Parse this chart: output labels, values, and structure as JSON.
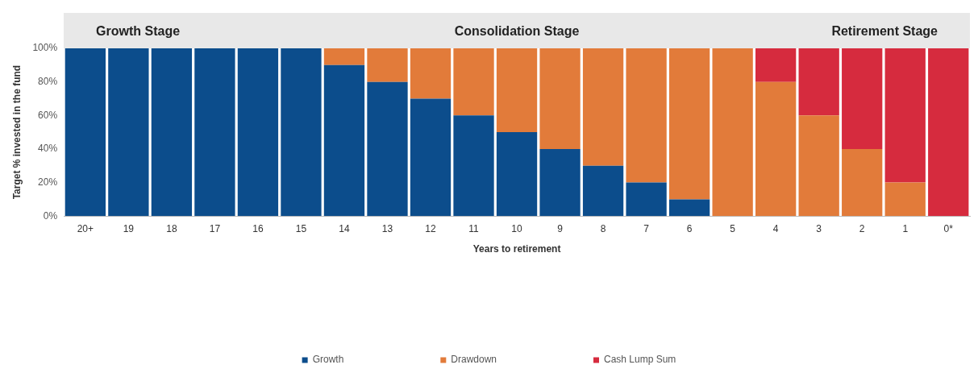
{
  "chart_data": {
    "type": "bar",
    "stacked": true,
    "xlabel": "Years to retirement",
    "ylabel": "Target % invested in the fund",
    "categories": [
      "20+",
      "19",
      "18",
      "17",
      "16",
      "15",
      "14",
      "13",
      "12",
      "11",
      "10",
      "9",
      "8",
      "7",
      "6",
      "5",
      "4",
      "3",
      "2",
      "1",
      "0*"
    ],
    "series": [
      {
        "name": "Growth",
        "color": "#0c4d8c",
        "values": [
          100,
          100,
          100,
          100,
          100,
          100,
          90,
          80,
          70,
          60,
          50,
          40,
          30,
          20,
          10,
          0,
          0,
          0,
          0,
          0,
          0
        ]
      },
      {
        "name": "Drawdown",
        "color": "#e27b3a",
        "values": [
          0,
          0,
          0,
          0,
          0,
          0,
          10,
          20,
          30,
          40,
          50,
          60,
          70,
          80,
          90,
          100,
          80,
          60,
          40,
          20,
          0
        ]
      },
      {
        "name": "Cash Lump Sum",
        "color": "#d62b3e",
        "values": [
          0,
          0,
          0,
          0,
          0,
          0,
          0,
          0,
          0,
          0,
          0,
          0,
          0,
          0,
          0,
          0,
          20,
          40,
          60,
          80,
          100
        ]
      }
    ],
    "ylim": [
      0,
      100
    ],
    "yticks": [
      {
        "value": 0,
        "label": "0%"
      },
      {
        "value": 20,
        "label": "20%"
      },
      {
        "value": 40,
        "label": "40%"
      },
      {
        "value": 60,
        "label": "60%"
      },
      {
        "value": 80,
        "label": "80%"
      },
      {
        "value": 100,
        "label": "100%"
      }
    ],
    "grid": false,
    "legend": "bottom",
    "annotations": [
      "Growth Stage",
      "Consolidation Stage",
      "Retirement Stage"
    ]
  }
}
